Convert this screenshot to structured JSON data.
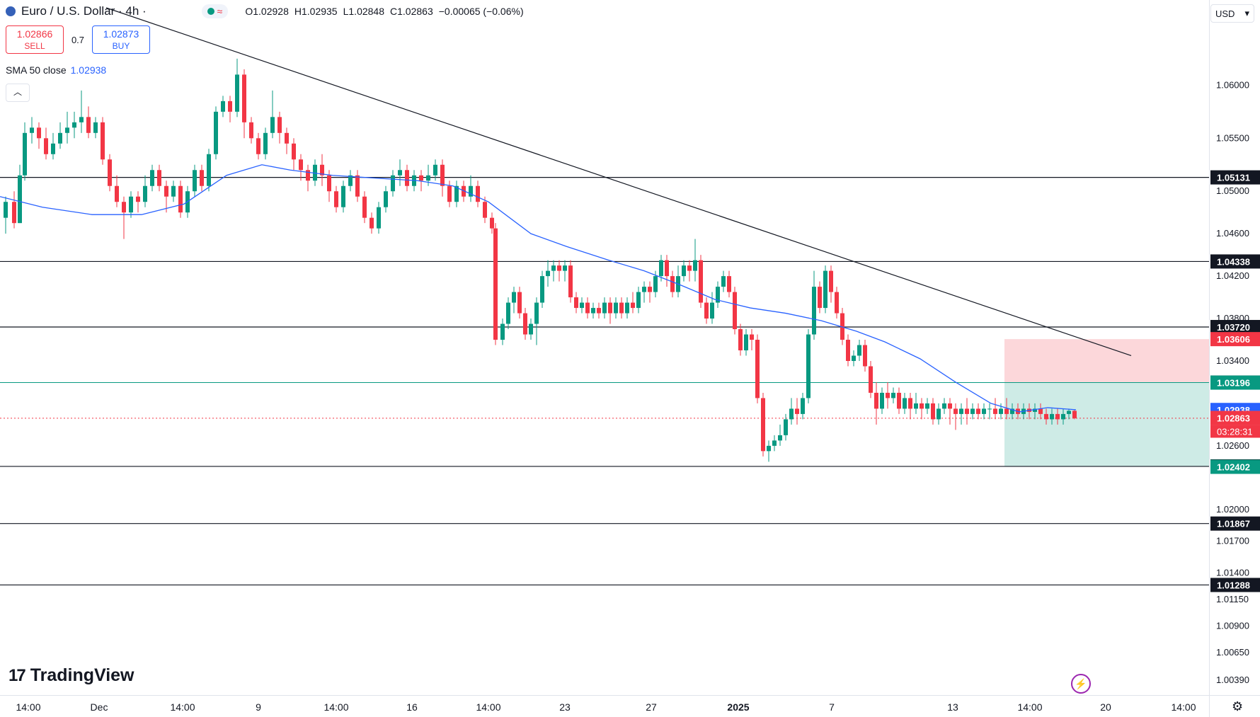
{
  "header": {
    "symbol": "Euro / U.S. Dollar · 4h ·",
    "open_label": "O",
    "open": "1.02928",
    "high_label": "H",
    "high": "1.02935",
    "low_label": "L",
    "low": "1.02848",
    "close_label": "C",
    "close": "1.02863",
    "change": "−0.00065 (−0.06%)"
  },
  "trade": {
    "sell_price": "1.02866",
    "sell_label": "SELL",
    "spread": "0.7",
    "buy_price": "1.02873",
    "buy_label": "BUY"
  },
  "indicator": {
    "label": "SMA 50 close",
    "value": "1.02938"
  },
  "currency": "USD",
  "logo_text": "TradingView",
  "chart_data": {
    "type": "candlestick",
    "x_ticks": [
      "14:00",
      "Dec",
      "14:00",
      "9",
      "14:00",
      "16",
      "14:00",
      "23",
      "27",
      "2025",
      "7",
      "13",
      "14:00",
      "20",
      "14:00"
    ],
    "y_ticks": [
      1.06,
      1.055,
      1.05,
      1.046,
      1.042,
      1.038,
      1.034,
      1.026,
      1.02,
      1.017,
      1.014,
      1.0115,
      1.009,
      1.0065,
      1.0039
    ],
    "ylim": [
      1.0025,
      1.0675
    ],
    "horizontal_levels": [
      1.05131,
      1.04338,
      1.0372,
      1.02406,
      1.01867,
      1.01288
    ],
    "green_line": 1.03196,
    "price_labels": [
      {
        "value": "1.05131",
        "color": "#131722"
      },
      {
        "value": "1.04338",
        "color": "#131722"
      },
      {
        "value": "1.03720",
        "color": "#131722"
      },
      {
        "value": "1.03606",
        "color": "#f23645"
      },
      {
        "value": "1.03197",
        "color": "#787b86"
      },
      {
        "value": "1.03196",
        "color": "#089981"
      },
      {
        "value": "1.02938",
        "color": "#2962ff"
      },
      {
        "value": "1.02863",
        "color": "#f23645"
      },
      {
        "value": "1.02406",
        "color": "#131722"
      },
      {
        "value": "1.02402",
        "color": "#089981"
      },
      {
        "value": "1.01867",
        "color": "#131722"
      },
      {
        "value": "1.01288",
        "color": "#131722"
      }
    ],
    "countdown": "03:28:31",
    "position_box": {
      "stop": 1.03606,
      "entry": 1.03196,
      "target": 1.02402
    },
    "colors": {
      "up": "#089981",
      "down": "#f23645",
      "sma": "#2962ff",
      "trendline": "#131722"
    },
    "sma_points": [
      [
        0,
        1.0495
      ],
      [
        60,
        1.0485
      ],
      [
        130,
        1.0478
      ],
      [
        200,
        1.0478
      ],
      [
        260,
        1.0488
      ],
      [
        320,
        1.0515
      ],
      [
        370,
        1.0525
      ],
      [
        410,
        1.052
      ],
      [
        470,
        1.0515
      ],
      [
        540,
        1.0512
      ],
      [
        590,
        1.051
      ],
      [
        640,
        1.0505
      ],
      [
        690,
        1.049
      ],
      [
        750,
        1.046
      ],
      [
        800,
        1.0448
      ],
      [
        860,
        1.0435
      ],
      [
        910,
        1.0425
      ],
      [
        960,
        1.0412
      ],
      [
        1010,
        1.0398
      ],
      [
        1060,
        1.039
      ],
      [
        1110,
        1.0385
      ],
      [
        1160,
        1.0378
      ],
      [
        1210,
        1.0368
      ],
      [
        1250,
        1.0358
      ],
      [
        1300,
        1.0342
      ],
      [
        1350,
        1.032
      ],
      [
        1400,
        1.03
      ],
      [
        1440,
        1.0292
      ],
      [
        1480,
        1.0296
      ],
      [
        1520,
        1.0294
      ]
    ],
    "trendline": [
      [
        150,
        1.0673
      ],
      [
        1598,
        1.0345
      ]
    ],
    "candles": [
      [
        8,
        1.0475,
        1.049,
        1.046,
        1.0495
      ],
      [
        20,
        1.049,
        1.047,
        1.0465,
        1.05
      ],
      [
        28,
        1.047,
        1.0515,
        1.047,
        1.0525
      ],
      [
        35,
        1.0515,
        1.0555,
        1.051,
        1.0565
      ],
      [
        45,
        1.0555,
        1.056,
        1.0545,
        1.057
      ],
      [
        55,
        1.056,
        1.055,
        1.054,
        1.0565
      ],
      [
        65,
        1.055,
        1.0535,
        1.053,
        1.056
      ],
      [
        75,
        1.0535,
        1.0545,
        1.053,
        1.0555
      ],
      [
        85,
        1.0545,
        1.0555,
        1.054,
        1.0565
      ],
      [
        95,
        1.0555,
        1.056,
        1.0545,
        1.0575
      ],
      [
        105,
        1.056,
        1.0565,
        1.055,
        1.0575
      ],
      [
        115,
        1.0565,
        1.057,
        1.0555,
        1.0595
      ],
      [
        125,
        1.057,
        1.0555,
        1.055,
        1.058
      ],
      [
        135,
        1.0555,
        1.0565,
        1.055,
        1.057
      ],
      [
        145,
        1.0565,
        1.053,
        1.0525,
        1.057
      ],
      [
        155,
        1.053,
        1.0505,
        1.05,
        1.0535
      ],
      [
        165,
        1.0505,
        1.049,
        1.0485,
        1.0515
      ],
      [
        175,
        1.049,
        1.048,
        1.0455,
        1.0495
      ],
      [
        185,
        1.048,
        1.0495,
        1.0475,
        1.05
      ],
      [
        195,
        1.0495,
        1.049,
        1.048,
        1.05
      ],
      [
        205,
        1.049,
        1.0505,
        1.0485,
        1.0515
      ],
      [
        215,
        1.0505,
        1.052,
        1.05,
        1.0525
      ],
      [
        225,
        1.052,
        1.0505,
        1.05,
        1.0525
      ],
      [
        235,
        1.0505,
        1.0495,
        1.048,
        1.051
      ],
      [
        245,
        1.0495,
        1.0505,
        1.049,
        1.051
      ],
      [
        255,
        1.0505,
        1.048,
        1.0475,
        1.051
      ],
      [
        265,
        1.048,
        1.05,
        1.0475,
        1.0505
      ],
      [
        275,
        1.05,
        1.052,
        1.0495,
        1.0525
      ],
      [
        285,
        1.052,
        1.0505,
        1.05,
        1.0525
      ],
      [
        295,
        1.0505,
        1.0535,
        1.05,
        1.054
      ],
      [
        305,
        1.0535,
        1.0575,
        1.053,
        1.058
      ],
      [
        315,
        1.0575,
        1.0585,
        1.057,
        1.059
      ],
      [
        325,
        1.0585,
        1.0575,
        1.0565,
        1.059
      ],
      [
        335,
        1.0575,
        1.061,
        1.057,
        1.0625
      ],
      [
        345,
        1.061,
        1.0565,
        1.055,
        1.0615
      ],
      [
        355,
        1.0565,
        1.055,
        1.0545,
        1.057
      ],
      [
        365,
        1.055,
        1.0535,
        1.053,
        1.0555
      ],
      [
        375,
        1.0535,
        1.0555,
        1.053,
        1.056
      ],
      [
        385,
        1.0555,
        1.057,
        1.055,
        1.0595
      ],
      [
        395,
        1.057,
        1.0555,
        1.0545,
        1.0575
      ],
      [
        405,
        1.0555,
        1.0545,
        1.0535,
        1.056
      ],
      [
        415,
        1.0545,
        1.053,
        1.052,
        1.055
      ],
      [
        425,
        1.053,
        1.052,
        1.051,
        1.0535
      ],
      [
        435,
        1.052,
        1.051,
        1.05,
        1.0525
      ],
      [
        445,
        1.051,
        1.0525,
        1.0505,
        1.053
      ],
      [
        455,
        1.0525,
        1.0515,
        1.0505,
        1.0535
      ],
      [
        465,
        1.0515,
        1.05,
        1.049,
        1.052
      ],
      [
        475,
        1.05,
        1.0485,
        1.048,
        1.0505
      ],
      [
        485,
        1.0485,
        1.0505,
        1.048,
        1.051
      ],
      [
        495,
        1.0505,
        1.0515,
        1.05,
        1.052
      ],
      [
        505,
        1.0515,
        1.0495,
        1.049,
        1.052
      ],
      [
        515,
        1.0495,
        1.0475,
        1.047,
        1.05
      ],
      [
        525,
        1.0475,
        1.0465,
        1.046,
        1.048
      ],
      [
        535,
        1.0465,
        1.0485,
        1.046,
        1.049
      ],
      [
        545,
        1.0485,
        1.05,
        1.048,
        1.0505
      ],
      [
        555,
        1.05,
        1.0515,
        1.0495,
        1.052
      ],
      [
        565,
        1.0515,
        1.052,
        1.0505,
        1.053
      ],
      [
        575,
        1.052,
        1.0505,
        1.05,
        1.0525
      ],
      [
        585,
        1.0505,
        1.0515,
        1.05,
        1.052
      ],
      [
        595,
        1.0515,
        1.051,
        1.05,
        1.052
      ],
      [
        605,
        1.051,
        1.0515,
        1.0505,
        1.0525
      ],
      [
        615,
        1.0515,
        1.0525,
        1.051,
        1.053
      ],
      [
        625,
        1.0525,
        1.0505,
        1.0495,
        1.053
      ],
      [
        635,
        1.0505,
        1.049,
        1.0485,
        1.051
      ],
      [
        645,
        1.049,
        1.0505,
        1.0485,
        1.051
      ],
      [
        655,
        1.0505,
        1.0495,
        1.049,
        1.051
      ],
      [
        665,
        1.0495,
        1.0505,
        1.049,
        1.0515
      ],
      [
        675,
        1.0505,
        1.049,
        1.0485,
        1.051
      ],
      [
        685,
        1.049,
        1.0475,
        1.047,
        1.0495
      ],
      [
        695,
        1.0475,
        1.0465,
        1.046,
        1.048
      ],
      [
        700,
        1.0465,
        1.036,
        1.0355,
        1.047
      ],
      [
        710,
        1.036,
        1.0375,
        1.0355,
        1.038
      ],
      [
        718,
        1.0375,
        1.0395,
        1.037,
        1.04
      ],
      [
        726,
        1.0395,
        1.0405,
        1.0385,
        1.041
      ],
      [
        734,
        1.0405,
        1.0385,
        1.038,
        1.041
      ],
      [
        742,
        1.0385,
        1.0365,
        1.036,
        1.039
      ],
      [
        750,
        1.0365,
        1.0375,
        1.036,
        1.038
      ],
      [
        758,
        1.0375,
        1.0395,
        1.0355,
        1.04
      ],
      [
        766,
        1.0395,
        1.042,
        1.039,
        1.0425
      ],
      [
        774,
        1.042,
        1.0425,
        1.041,
        1.0435
      ],
      [
        782,
        1.0425,
        1.043,
        1.0415,
        1.0435
      ],
      [
        790,
        1.043,
        1.0425,
        1.0415,
        1.0435
      ],
      [
        798,
        1.0425,
        1.043,
        1.0415,
        1.0435
      ],
      [
        806,
        1.043,
        1.04,
        1.0395,
        1.0435
      ],
      [
        814,
        1.04,
        1.039,
        1.0385,
        1.0405
      ],
      [
        822,
        1.039,
        1.0395,
        1.0385,
        1.04
      ],
      [
        830,
        1.0395,
        1.0385,
        1.038,
        1.04
      ],
      [
        838,
        1.0385,
        1.039,
        1.038,
        1.0395
      ],
      [
        846,
        1.039,
        1.0385,
        1.038,
        1.0395
      ],
      [
        854,
        1.0385,
        1.0395,
        1.038,
        1.04
      ],
      [
        862,
        1.0395,
        1.0385,
        1.0375,
        1.04
      ],
      [
        870,
        1.0385,
        1.0395,
        1.038,
        1.04
      ],
      [
        878,
        1.0395,
        1.0385,
        1.038,
        1.04
      ],
      [
        886,
        1.0385,
        1.0395,
        1.038,
        1.04
      ],
      [
        894,
        1.0395,
        1.039,
        1.0385,
        1.0405
      ],
      [
        902,
        1.039,
        1.0405,
        1.0385,
        1.041
      ],
      [
        910,
        1.0405,
        1.041,
        1.0395,
        1.0415
      ],
      [
        918,
        1.041,
        1.0405,
        1.0395,
        1.0415
      ],
      [
        926,
        1.0405,
        1.042,
        1.04,
        1.0425
      ],
      [
        934,
        1.042,
        1.0435,
        1.0415,
        1.044
      ],
      [
        942,
        1.0435,
        1.042,
        1.041,
        1.044
      ],
      [
        950,
        1.042,
        1.0405,
        1.04,
        1.0425
      ],
      [
        958,
        1.0405,
        1.042,
        1.04,
        1.043
      ],
      [
        966,
        1.042,
        1.043,
        1.0415,
        1.0435
      ],
      [
        974,
        1.043,
        1.0425,
        1.0415,
        1.0435
      ],
      [
        982,
        1.0425,
        1.0435,
        1.0415,
        1.0455
      ],
      [
        990,
        1.0435,
        1.0395,
        1.039,
        1.044
      ],
      [
        998,
        1.0395,
        1.038,
        1.0375,
        1.04
      ],
      [
        1006,
        1.038,
        1.0395,
        1.0375,
        1.0405
      ],
      [
        1014,
        1.0395,
        1.041,
        1.039,
        1.0415
      ],
      [
        1022,
        1.041,
        1.042,
        1.0405,
        1.0425
      ],
      [
        1030,
        1.042,
        1.0405,
        1.04,
        1.0425
      ],
      [
        1038,
        1.0405,
        1.037,
        1.0365,
        1.041
      ],
      [
        1046,
        1.037,
        1.035,
        1.0345,
        1.0375
      ],
      [
        1054,
        1.035,
        1.0365,
        1.0345,
        1.037
      ],
      [
        1062,
        1.0365,
        1.036,
        1.035,
        1.037
      ],
      [
        1070,
        1.036,
        1.0305,
        1.03,
        1.0365
      ],
      [
        1078,
        1.0305,
        1.0255,
        1.025,
        1.031
      ],
      [
        1086,
        1.0255,
        1.026,
        1.0245,
        1.0265
      ],
      [
        1094,
        1.026,
        1.0265,
        1.0255,
        1.027
      ],
      [
        1102,
        1.0265,
        1.027,
        1.026,
        1.028
      ],
      [
        1110,
        1.027,
        1.0285,
        1.0265,
        1.029
      ],
      [
        1118,
        1.0285,
        1.0295,
        1.028,
        1.0305
      ],
      [
        1126,
        1.0295,
        1.029,
        1.028,
        1.0305
      ],
      [
        1134,
        1.029,
        1.0305,
        1.0285,
        1.031
      ],
      [
        1142,
        1.0305,
        1.0365,
        1.03,
        1.037
      ],
      [
        1150,
        1.0365,
        1.041,
        1.036,
        1.0425
      ],
      [
        1158,
        1.041,
        1.039,
        1.0385,
        1.0415
      ],
      [
        1166,
        1.039,
        1.0425,
        1.0385,
        1.043
      ],
      [
        1174,
        1.0425,
        1.0405,
        1.0395,
        1.043
      ],
      [
        1182,
        1.0405,
        1.0385,
        1.038,
        1.041
      ],
      [
        1190,
        1.0385,
        1.036,
        1.0355,
        1.039
      ],
      [
        1198,
        1.036,
        1.034,
        1.0335,
        1.0365
      ],
      [
        1206,
        1.034,
        1.0345,
        1.0335,
        1.035
      ],
      [
        1214,
        1.0345,
        1.0355,
        1.034,
        1.036
      ],
      [
        1222,
        1.0355,
        1.0335,
        1.033,
        1.036
      ],
      [
        1230,
        1.0335,
        1.031,
        1.0305,
        1.034
      ],
      [
        1238,
        1.031,
        1.0295,
        1.028,
        1.032
      ],
      [
        1246,
        1.0295,
        1.031,
        1.029,
        1.0315
      ],
      [
        1254,
        1.031,
        1.0305,
        1.0295,
        1.032
      ],
      [
        1262,
        1.0305,
        1.031,
        1.03,
        1.0315
      ],
      [
        1270,
        1.031,
        1.0295,
        1.029,
        1.0315
      ],
      [
        1278,
        1.0295,
        1.0305,
        1.029,
        1.031
      ],
      [
        1286,
        1.0305,
        1.0295,
        1.0285,
        1.031
      ],
      [
        1294,
        1.0295,
        1.03,
        1.029,
        1.031
      ],
      [
        1302,
        1.03,
        1.0295,
        1.0285,
        1.0305
      ],
      [
        1310,
        1.0295,
        1.03,
        1.029,
        1.0305
      ],
      [
        1318,
        1.03,
        1.0285,
        1.028,
        1.0305
      ],
      [
        1326,
        1.0285,
        1.0295,
        1.028,
        1.03
      ],
      [
        1334,
        1.0295,
        1.03,
        1.029,
        1.0305
      ],
      [
        1342,
        1.03,
        1.0295,
        1.028,
        1.0305
      ],
      [
        1350,
        1.0295,
        1.029,
        1.0275,
        1.03
      ],
      [
        1358,
        1.029,
        1.0295,
        1.028,
        1.03
      ],
      [
        1366,
        1.0295,
        1.029,
        1.028,
        1.0305
      ],
      [
        1374,
        1.029,
        1.0295,
        1.0285,
        1.03
      ],
      [
        1382,
        1.0295,
        1.029,
        1.0285,
        1.03
      ],
      [
        1390,
        1.029,
        1.0295,
        1.0285,
        1.03
      ],
      [
        1398,
        1.0295,
        1.0295,
        1.0285,
        1.03
      ],
      [
        1406,
        1.0295,
        1.029,
        1.0285,
        1.0305
      ],
      [
        1414,
        1.029,
        1.0295,
        1.0285,
        1.03
      ],
      [
        1422,
        1.0295,
        1.029,
        1.0285,
        1.0305
      ],
      [
        1430,
        1.029,
        1.0295,
        1.0285,
        1.03
      ],
      [
        1438,
        1.0295,
        1.029,
        1.0285,
        1.03
      ],
      [
        1446,
        1.029,
        1.0295,
        1.0285,
        1.03
      ],
      [
        1454,
        1.0295,
        1.0292,
        1.0285,
        1.03
      ],
      [
        1462,
        1.0292,
        1.0295,
        1.0285,
        1.03
      ],
      [
        1470,
        1.0295,
        1.029,
        1.0285,
        1.03
      ],
      [
        1478,
        1.029,
        1.0285,
        1.028,
        1.0295
      ],
      [
        1486,
        1.0285,
        1.029,
        1.028,
        1.0295
      ],
      [
        1494,
        1.029,
        1.0285,
        1.028,
        1.0295
      ],
      [
        1502,
        1.0285,
        1.029,
        1.028,
        1.0295
      ],
      [
        1510,
        1.029,
        1.0293,
        1.0285,
        1.0295
      ],
      [
        1518,
        1.0293,
        1.0286,
        1.0285,
        1.0294
      ]
    ]
  }
}
